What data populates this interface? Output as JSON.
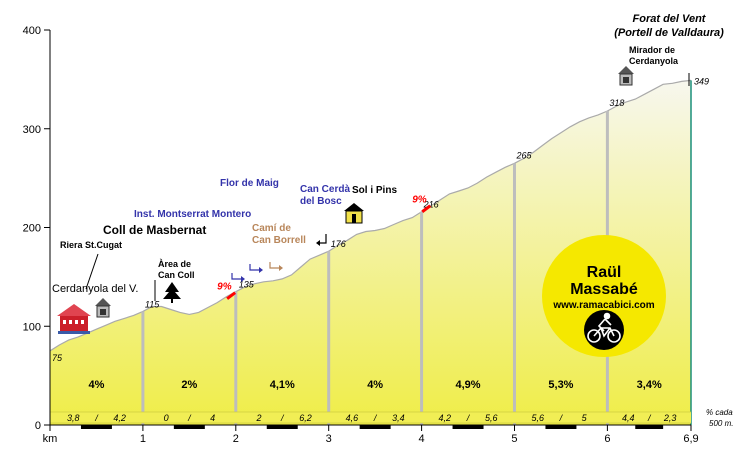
{
  "chart_data": {
    "type": "area",
    "title": "Forat del Vent",
    "subtitle": "(Portell de Valldaura)",
    "xlabel": "km",
    "ylabel": "",
    "xlim": [
      0,
      6.9
    ],
    "ylim": [
      0,
      400
    ],
    "grid": false,
    "x_ticks": [
      {
        "value": 0,
        "label": "km"
      },
      {
        "value": 1,
        "label": "1"
      },
      {
        "value": 2,
        "label": "2"
      },
      {
        "value": 3,
        "label": "3"
      },
      {
        "value": 4,
        "label": "4"
      },
      {
        "value": 5,
        "label": "5"
      },
      {
        "value": 6,
        "label": "6"
      },
      {
        "value": 6.9,
        "label": "6,9"
      }
    ],
    "y_ticks": [
      {
        "value": 0,
        "label": "0"
      },
      {
        "value": 100,
        "label": "100"
      },
      {
        "value": 200,
        "label": "200"
      },
      {
        "value": 300,
        "label": "300"
      },
      {
        "value": 400,
        "label": "400"
      }
    ],
    "profile": {
      "x": [
        0,
        0.1,
        0.2,
        0.3,
        0.4,
        0.5,
        0.6,
        0.7,
        0.8,
        0.9,
        1.0,
        1.1,
        1.2,
        1.3,
        1.4,
        1.5,
        1.6,
        1.7,
        1.8,
        1.9,
        2.0,
        2.1,
        2.2,
        2.3,
        2.4,
        2.5,
        2.6,
        2.7,
        2.8,
        2.9,
        3.0,
        3.1,
        3.2,
        3.3,
        3.4,
        3.5,
        3.6,
        3.7,
        3.8,
        3.9,
        4.0,
        4.1,
        4.2,
        4.3,
        4.4,
        4.5,
        4.6,
        4.7,
        4.8,
        4.9,
        5.0,
        5.1,
        5.2,
        5.3,
        5.4,
        5.5,
        5.6,
        5.7,
        5.8,
        5.9,
        6.0,
        6.1,
        6.2,
        6.3,
        6.4,
        6.5,
        6.6,
        6.7,
        6.8,
        6.9
      ],
      "y": [
        75,
        81,
        86,
        89,
        93,
        97,
        101,
        105,
        108,
        111,
        115,
        120,
        120,
        117,
        114,
        112,
        114,
        119,
        124,
        130,
        135,
        140,
        143,
        145,
        146,
        148,
        152,
        160,
        168,
        172,
        176,
        182,
        187,
        193,
        196,
        197,
        199,
        203,
        207,
        210,
        216,
        222,
        228,
        234,
        237,
        240,
        245,
        251,
        256,
        261,
        265,
        270,
        276,
        283,
        290,
        296,
        302,
        307,
        311,
        314,
        318,
        323,
        327,
        330,
        335,
        340,
        345,
        346,
        348,
        349
      ]
    },
    "point_labels": [
      {
        "x": 0,
        "y": 75,
        "label": "75"
      },
      {
        "x": 1,
        "y": 115,
        "label": "115"
      },
      {
        "x": 2,
        "y": 135,
        "label": "135"
      },
      {
        "x": 3,
        "y": 176,
        "label": "176"
      },
      {
        "x": 4,
        "y": 216,
        "label": "216"
      },
      {
        "x": 5,
        "y": 265,
        "label": "265"
      },
      {
        "x": 6,
        "y": 318,
        "label": "318"
      },
      {
        "x": 6.9,
        "y": 349,
        "label": "349"
      }
    ],
    "segments": [
      {
        "x_start": 0,
        "x_end": 1,
        "grade": "4%",
        "half_grades": [
          "3,8",
          "4,2"
        ]
      },
      {
        "x_start": 1,
        "x_end": 2,
        "grade": "2%",
        "half_grades": [
          "0",
          "4"
        ]
      },
      {
        "x_start": 2,
        "x_end": 3,
        "grade": "4,1%",
        "half_grades": [
          "2",
          "6,2"
        ]
      },
      {
        "x_start": 3,
        "x_end": 4,
        "grade": "4%",
        "half_grades": [
          "4,6",
          "3,4"
        ]
      },
      {
        "x_start": 4,
        "x_end": 5,
        "grade": "4,9%",
        "half_grades": [
          "4,2",
          "5,6"
        ]
      },
      {
        "x_start": 5,
        "x_end": 6,
        "grade": "5,3%",
        "half_grades": [
          "5,6",
          "5"
        ]
      },
      {
        "x_start": 6,
        "x_end": 6.9,
        "grade": "3,4%",
        "half_grades": [
          "4,4",
          "2,3"
        ]
      }
    ],
    "half_grade_separator": "/",
    "half_grade_legend": [
      "% cada",
      "500 m."
    ],
    "max_grades": [
      {
        "x": 1.95,
        "y": 131,
        "label": "9%"
      },
      {
        "x": 4.05,
        "y": 219,
        "label": "9%"
      }
    ],
    "annotations": [
      {
        "id": "forat",
        "text": [
          "Forat del Vent",
          "(Portell de Valldaura)"
        ],
        "x": 6.1,
        "y": 405,
        "color": "#000000",
        "style": "italic-bold"
      },
      {
        "id": "mirador",
        "text": [
          "Mirador de",
          "Cerdanyola"
        ],
        "x": 6.25,
        "y": 370,
        "color": "#000000",
        "style": "bold"
      },
      {
        "id": "coll",
        "text": [
          "Coll de Masbernat"
        ],
        "x": 1.3,
        "y": 196,
        "color": "#000000",
        "style": "bold-large"
      },
      {
        "id": "riera",
        "text": [
          "Riera St.Cugat"
        ],
        "x": 0.45,
        "y": 183,
        "color": "#000000",
        "style": "bold"
      },
      {
        "id": "cerdanyola",
        "text": [
          "Cerdanyola del V."
        ],
        "x": 0.45,
        "y": 139,
        "color": "#000000",
        "style": "normal"
      },
      {
        "id": "area",
        "text": [
          "Àrea de",
          "Can Coll"
        ],
        "x": 1.45,
        "y": 163,
        "color": "#000000",
        "style": "bold"
      },
      {
        "id": "inst",
        "text": [
          "Inst. Montserrat Montero"
        ],
        "x": 1.55,
        "y": 212,
        "color": "#3333aa",
        "style": "bold"
      },
      {
        "id": "flor",
        "text": [
          "Flor de Maig"
        ],
        "x": 2.1,
        "y": 243,
        "color": "#3333aa",
        "style": "bold"
      },
      {
        "id": "cami",
        "text": [
          "Camí de",
          "Can Borrell"
        ],
        "x": 2.5,
        "y": 197,
        "color": "#b8865a",
        "style": "bold"
      },
      {
        "id": "cancerda",
        "text": [
          "Can Cerdà",
          "del Bosc"
        ],
        "x": 2.95,
        "y": 238,
        "color": "#3333aa",
        "style": "bold"
      },
      {
        "id": "solipins",
        "text": [
          "Sol i Pins"
        ],
        "x": 3.5,
        "y": 236,
        "color": "#000000",
        "style": "bold"
      }
    ],
    "logo": {
      "lines": [
        "Raül",
        "Massabé",
        "www.ramacabici.com"
      ],
      "fill": "#f5e800"
    },
    "colors": {
      "fill_top": "#f7f7ee",
      "fill_bottom": "#efed47",
      "outline": "#aaaaaa",
      "divider": "#bdbdbd",
      "grade_red": "#ff0000",
      "teal_edge": "#1a8f7a",
      "blue_text": "#3333aa",
      "brown_text": "#b8865a"
    }
  }
}
